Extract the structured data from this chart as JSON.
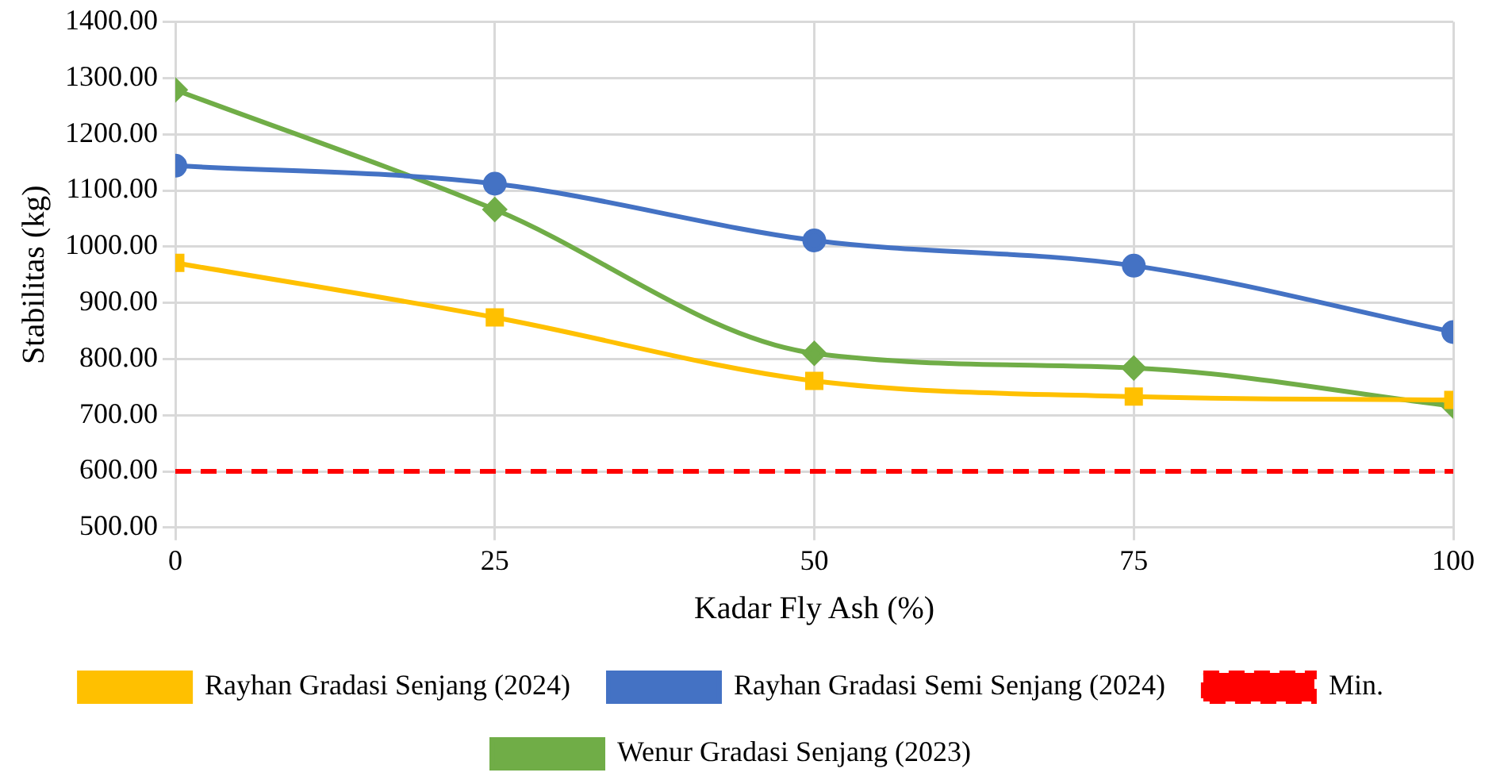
{
  "chart_data": {
    "type": "line",
    "xlabel": "Kadar Fly Ash (%)",
    "ylabel": "Stabilitas (kg)",
    "x": [
      0,
      25,
      50,
      75,
      100
    ],
    "series": [
      {
        "name": "Rayhan Gradasi Senjang (2024)",
        "color": "#ffc000",
        "marker": "square",
        "values": [
          971,
          874,
          761,
          733,
          727
        ]
      },
      {
        "name": "Rayhan Gradasi Semi Senjang (2024)",
        "color": "#4472c4",
        "marker": "circle",
        "values": [
          1144,
          1112,
          1011,
          966,
          848
        ]
      },
      {
        "name": "Min.",
        "color": "#ff0000",
        "marker": "none",
        "line_style": "dashed",
        "values": [
          600,
          600,
          600,
          600,
          600
        ]
      },
      {
        "name": "Wenur Gradasi Senjang (2023)",
        "color": "#70ad47",
        "marker": "diamond",
        "values": [
          1279,
          1066,
          810,
          784,
          716
        ]
      }
    ],
    "xlim": [
      0,
      100
    ],
    "xticks": [
      0,
      25,
      50,
      75,
      100
    ],
    "ylim": [
      500,
      1400
    ],
    "yticks": [
      {
        "value": 500,
        "label": "500.00"
      },
      {
        "value": 600,
        "label": "600.00"
      },
      {
        "value": 700,
        "label": "700.00"
      },
      {
        "value": 800,
        "label": "800.00"
      },
      {
        "value": 900,
        "label": "900.00"
      },
      {
        "value": 1000,
        "label": "1000.00"
      },
      {
        "value": 1100,
        "label": "1100.00"
      },
      {
        "value": 1200,
        "label": "1200.00"
      },
      {
        "value": 1300,
        "label": "1300.00"
      },
      {
        "value": 1400,
        "label": "1400.00"
      }
    ],
    "grid": true,
    "legend": "bottom"
  }
}
